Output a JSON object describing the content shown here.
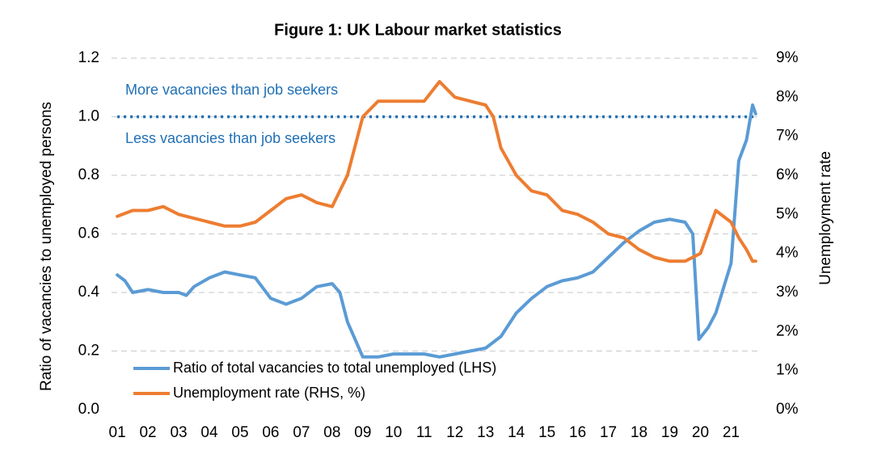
{
  "chart_data": {
    "type": "line",
    "title": "Figure 1: UK Labour market statistics",
    "ylabel": "Ratio of vacancies to unemployed persons",
    "y2label": "Unemployment rate",
    "xlim": [
      0.55,
      22.2
    ],
    "xticks": [
      {
        "value": 1,
        "label": "01"
      },
      {
        "value": 2,
        "label": "02"
      },
      {
        "value": 3,
        "label": "03"
      },
      {
        "value": 4,
        "label": "04"
      },
      {
        "value": 5,
        "label": "05"
      },
      {
        "value": 6,
        "label": "06"
      },
      {
        "value": 7,
        "label": "07"
      },
      {
        "value": 8,
        "label": "08"
      },
      {
        "value": 9,
        "label": "09"
      },
      10,
      11,
      12,
      13,
      14,
      15,
      16,
      17,
      18,
      19,
      20,
      21
    ],
    "ylim": [
      0,
      1.2
    ],
    "yticks": [
      {
        "value": 0,
        "label": "0.0"
      },
      0.2,
      0.4,
      0.6,
      0.8,
      {
        "value": 1,
        "label": "1.0"
      },
      1.2
    ],
    "y2lim": [
      0,
      9
    ],
    "y2ticks": [
      {
        "value": 0,
        "label": "0%"
      },
      {
        "value": 1,
        "label": "1%"
      },
      {
        "value": 2,
        "label": "2%"
      },
      {
        "value": 3,
        "label": "3%"
      },
      {
        "value": 4,
        "label": "4%"
      },
      {
        "value": 5,
        "label": "5%"
      },
      {
        "value": 6,
        "label": "6%"
      },
      {
        "value": 7,
        "label": "7%"
      },
      {
        "value": 8,
        "label": "8%"
      },
      {
        "value": 9,
        "label": "9%"
      }
    ],
    "grid": true,
    "hline": {
      "value": 1,
      "color": "#1f6fb5",
      "annotations": [
        "More vacancies than job seekers",
        "Less vacancies than job seekers"
      ]
    },
    "series": [
      {
        "name": "Ratio of total vacancies to total unemployed (LHS)",
        "color": "#5b9bd5",
        "axis": "y",
        "x": [
          1,
          1.25,
          1.5,
          2,
          2.5,
          3,
          3.25,
          3.5,
          4,
          4.5,
          5,
          5.5,
          6,
          6.5,
          7,
          7.5,
          8,
          8.25,
          8.5,
          9,
          9.5,
          10,
          10.5,
          11,
          11.5,
          12,
          12.5,
          13,
          13.5,
          14,
          14.5,
          15,
          15.5,
          16,
          16.5,
          17,
          17.5,
          18,
          18.5,
          19,
          19.5,
          19.75,
          19.95,
          20.25,
          20.5,
          21,
          21.25,
          21.5,
          21.7,
          21.8
        ],
        "values": [
          0.46,
          0.44,
          0.4,
          0.41,
          0.4,
          0.4,
          0.39,
          0.42,
          0.45,
          0.47,
          0.46,
          0.45,
          0.38,
          0.36,
          0.38,
          0.42,
          0.43,
          0.4,
          0.3,
          0.18,
          0.18,
          0.19,
          0.19,
          0.19,
          0.18,
          0.19,
          0.2,
          0.21,
          0.25,
          0.33,
          0.38,
          0.42,
          0.44,
          0.45,
          0.47,
          0.52,
          0.57,
          0.61,
          0.64,
          0.65,
          0.64,
          0.6,
          0.24,
          0.28,
          0.33,
          0.5,
          0.85,
          0.92,
          1.04,
          1.01
        ]
      },
      {
        "name": "Unemployment rate (RHS, %)",
        "color": "#ed7d31",
        "axis": "y2",
        "x": [
          1,
          1.5,
          2,
          2.5,
          3,
          3.5,
          4,
          4.5,
          5,
          5.5,
          6,
          6.5,
          7,
          7.5,
          8,
          8.5,
          9,
          9.5,
          10,
          10.5,
          11,
          11.5,
          12,
          12.5,
          13,
          13.25,
          13.5,
          14,
          14.5,
          15,
          15.5,
          16,
          16.5,
          17,
          17.5,
          18,
          18.5,
          19,
          19.5,
          20,
          20.5,
          21,
          21.25,
          21.5,
          21.7,
          21.8
        ],
        "values": [
          4.95,
          5.1,
          5.1,
          5.2,
          5.0,
          4.9,
          4.8,
          4.7,
          4.7,
          4.8,
          5.1,
          5.4,
          5.5,
          5.3,
          5.2,
          6.0,
          7.5,
          7.9,
          7.9,
          7.9,
          7.9,
          8.4,
          8.0,
          7.9,
          7.8,
          7.5,
          6.7,
          6.0,
          5.6,
          5.5,
          5.1,
          5.0,
          4.8,
          4.5,
          4.4,
          4.1,
          3.9,
          3.8,
          3.8,
          4.0,
          5.1,
          4.8,
          4.4,
          4.1,
          3.8,
          3.8
        ]
      }
    ]
  }
}
